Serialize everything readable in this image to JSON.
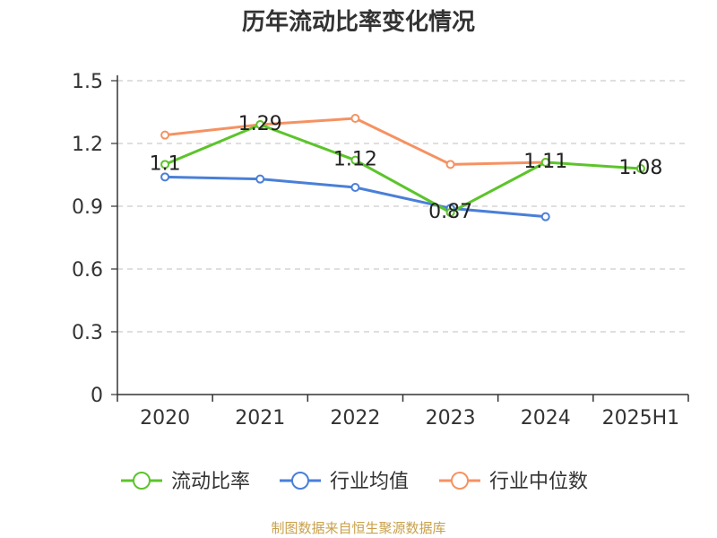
{
  "chart_data": {
    "type": "line",
    "title": "历年流动比率变化情况",
    "categories": [
      "2020",
      "2021",
      "2022",
      "2023",
      "2024",
      "2025H1"
    ],
    "ylim": [
      0,
      1.5
    ],
    "yticks": [
      "0",
      "0.3",
      "0.6",
      "0.9",
      "1.2",
      "1.5"
    ],
    "grid": true,
    "legend_position": "bottom",
    "series": [
      {
        "name": "流动比率",
        "color": "#5cc42b",
        "values": [
          1.1,
          1.29,
          1.12,
          0.87,
          1.11,
          1.08
        ],
        "labels": [
          "1.1",
          "1.29",
          "1.12",
          "0.87",
          "1.11",
          "1.08"
        ]
      },
      {
        "name": "行业均值",
        "color": "#4a7fd8",
        "values": [
          1.04,
          1.03,
          0.99,
          0.89,
          0.85,
          null
        ]
      },
      {
        "name": "行业中位数",
        "color": "#f59262",
        "values": [
          1.24,
          1.29,
          1.32,
          1.1,
          1.11,
          null
        ]
      }
    ]
  },
  "footer": {
    "source": "制图数据来自恒生聚源数据库"
  }
}
